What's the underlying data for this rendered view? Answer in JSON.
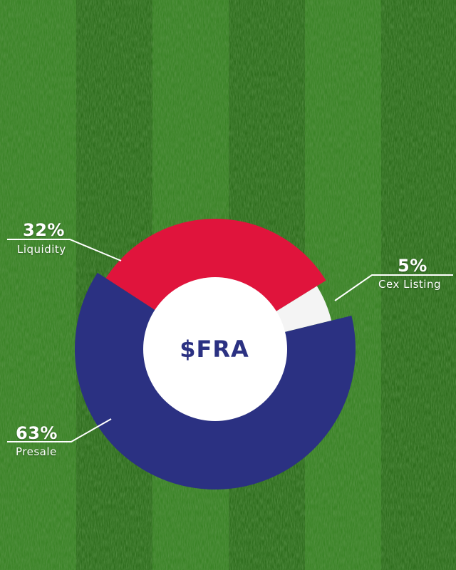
{
  "center_text": "$FRA",
  "colors": {
    "presale": "#2b3182",
    "liquidity": "#e0143c",
    "cex_listing": "#f4f4f4",
    "hole": "#ffffff",
    "center_text": "#2b3182",
    "turf_light": "#3f8a2a",
    "turf_dark": "#2a6219"
  },
  "chart_data": {
    "type": "pie",
    "donut": true,
    "slices": [
      {
        "key": "liquidity",
        "label": "Liquidity",
        "value": 32,
        "value_label": "32%"
      },
      {
        "key": "cex_listing",
        "label": "Cex Listing",
        "value": 5,
        "value_label": "5%"
      },
      {
        "key": "presale",
        "label": "Presale",
        "value": 63,
        "value_label": "63%"
      }
    ],
    "center_label": "$FRA",
    "legend": "none"
  }
}
